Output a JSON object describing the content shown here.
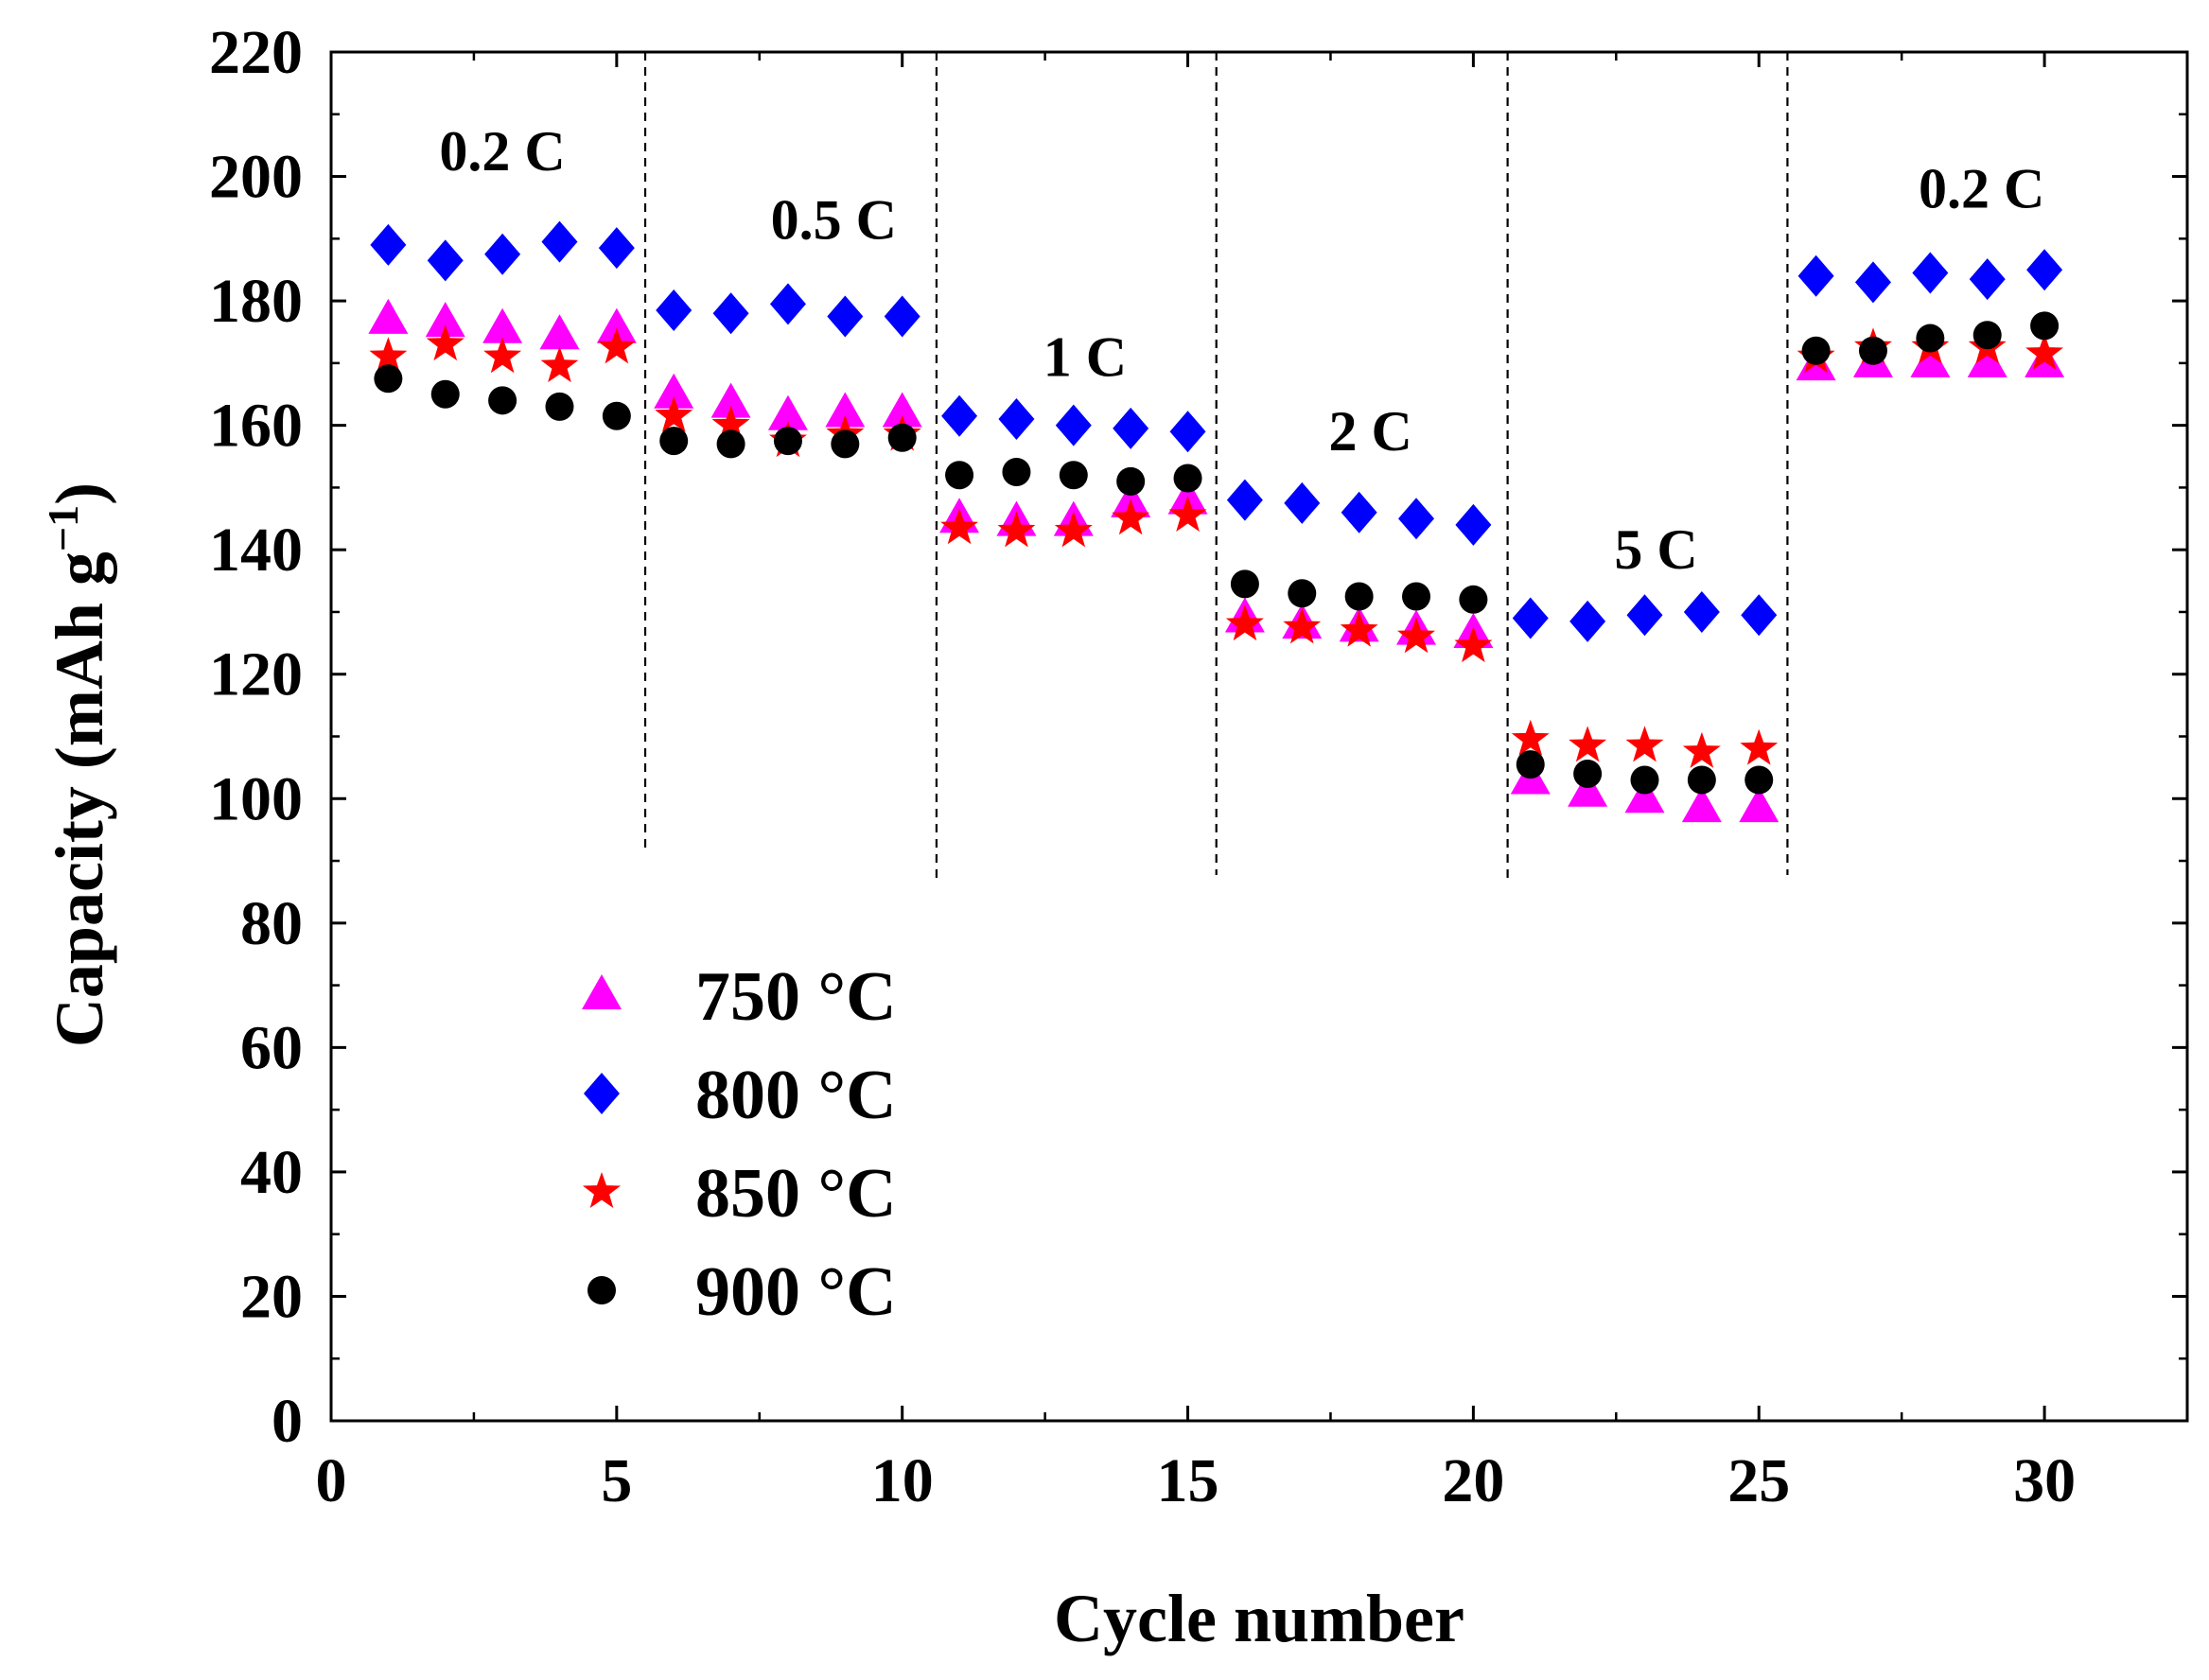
{
  "chart_data": {
    "type": "scatter",
    "xlabel": "Cycle number",
    "ylabel": "Capacity (mAh g",
    "ylabel_sup": "−1",
    "ylabel_close": ")",
    "xlim": [
      0,
      32.5
    ],
    "ylim": [
      0,
      220
    ],
    "xticks": [
      0,
      5,
      10,
      15,
      20,
      25,
      30
    ],
    "yticks": [
      0,
      20,
      40,
      60,
      80,
      100,
      120,
      140,
      160,
      180,
      200,
      220
    ],
    "rate_dividers": [
      5.5,
      10.6,
      15.5,
      20.6,
      25.5
    ],
    "rate_labels": [
      {
        "text": "0.2 C",
        "x": 3.0,
        "y": 204
      },
      {
        "text": "0.5 C",
        "x": 8.8,
        "y": 193
      },
      {
        "text": "1 C",
        "x": 13.2,
        "y": 171
      },
      {
        "text": "2 C",
        "x": 18.2,
        "y": 159
      },
      {
        "text": "5 C",
        "x": 23.2,
        "y": 140
      },
      {
        "text": "0.2 C",
        "x": 28.9,
        "y": 198
      }
    ],
    "x": [
      1,
      2,
      3,
      4,
      5,
      6,
      7,
      8,
      9,
      10,
      11,
      12,
      13,
      14,
      15,
      16,
      17,
      18,
      19,
      20,
      21,
      22,
      23,
      24,
      25,
      26,
      27,
      28,
      29,
      30
    ],
    "series": [
      {
        "name": "750 °C",
        "marker": "triangle",
        "color": "#ff00ff",
        "values": [
          177,
          176.5,
          175.5,
          174.5,
          175.5,
          165,
          163.5,
          161.5,
          162,
          162,
          145,
          144.5,
          144.5,
          147.5,
          148,
          129,
          128,
          127.5,
          127,
          126.5,
          103,
          101,
          100,
          98.5,
          98.5,
          169.5,
          170,
          170,
          170,
          170
        ]
      },
      {
        "name": "800 °C",
        "marker": "diamond",
        "color": "#0000ff",
        "values": [
          189,
          186.5,
          187.5,
          189.5,
          188.5,
          178.5,
          178,
          179.5,
          177.5,
          177.5,
          161.5,
          161,
          160,
          159.5,
          159,
          148,
          147.5,
          146,
          145,
          144,
          129,
          128.5,
          129.5,
          130,
          129.5,
          184,
          183,
          184.5,
          183.5,
          185
        ]
      },
      {
        "name": "850 °C",
        "marker": "star",
        "color": "#ff0000",
        "values": [
          171,
          173,
          171,
          169.5,
          172.5,
          161.5,
          160,
          157.5,
          158.5,
          158.5,
          143.5,
          143,
          143,
          145,
          145.5,
          128,
          127.5,
          127,
          126,
          124.5,
          109.5,
          108.5,
          108.5,
          107.5,
          108,
          171,
          172.5,
          172.5,
          172.5,
          171.5
        ]
      },
      {
        "name": "900 °C",
        "marker": "circle",
        "color": "#000000",
        "values": [
          167.5,
          165,
          164,
          163,
          161.5,
          157.5,
          157,
          157.5,
          157,
          158,
          152,
          152.5,
          152,
          151,
          151.5,
          134.5,
          133,
          132.5,
          132.5,
          132,
          105.5,
          104,
          103,
          103,
          103,
          172,
          172,
          174,
          174.5,
          176
        ]
      }
    ],
    "legend_position": "bottom-left inside plot"
  }
}
